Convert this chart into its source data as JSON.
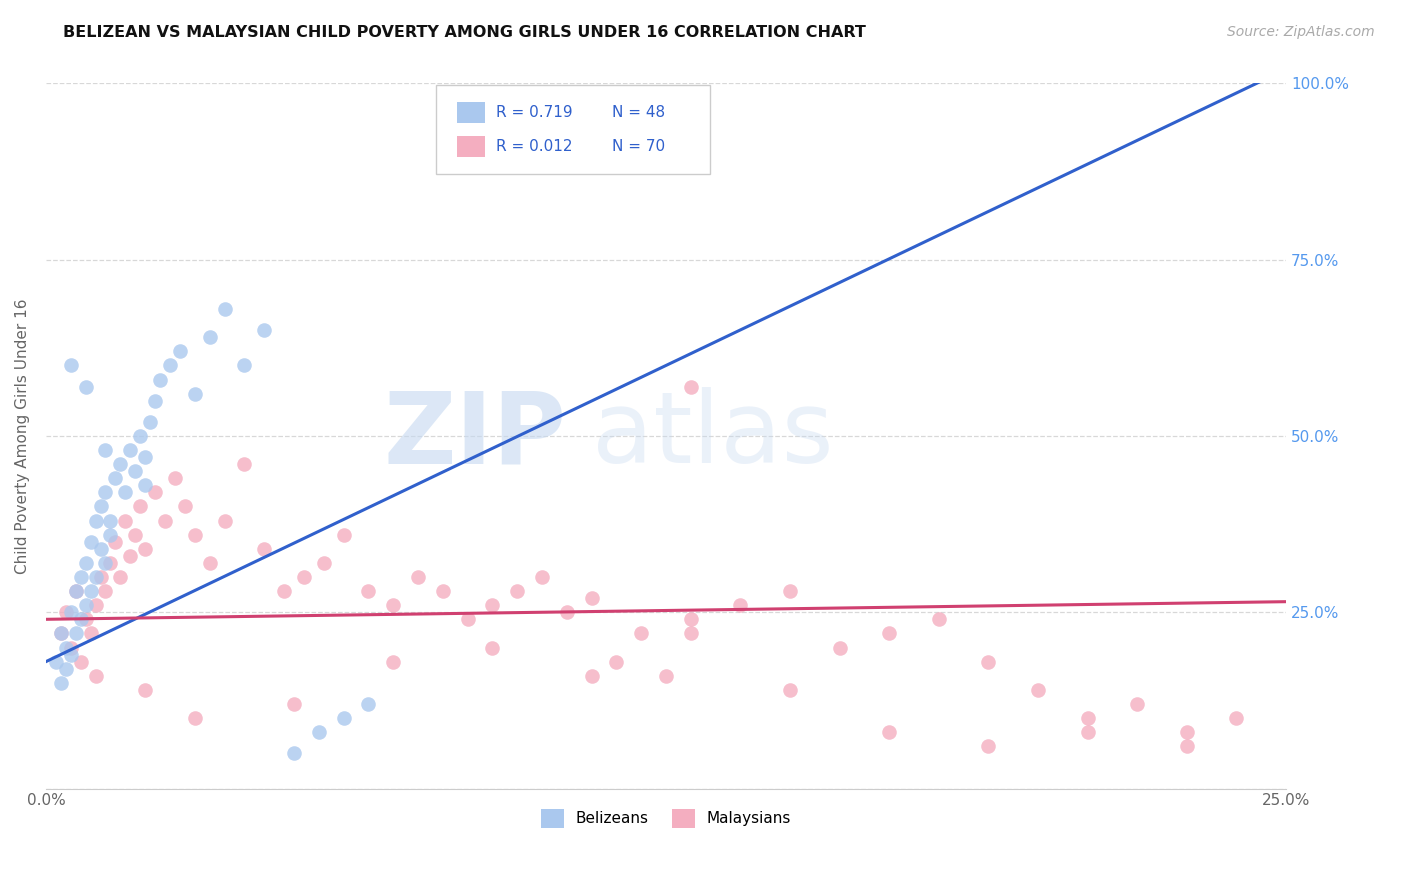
{
  "title": "BELIZEAN VS MALAYSIAN CHILD POVERTY AMONG GIRLS UNDER 16 CORRELATION CHART",
  "source": "Source: ZipAtlas.com",
  "ylabel": "Child Poverty Among Girls Under 16",
  "xlim": [
    0.0,
    0.25
  ],
  "ylim": [
    0.0,
    1.0
  ],
  "belize_color": "#aac8ee",
  "malaysia_color": "#f4aec0",
  "belize_line_color": "#3060cc",
  "malaysia_line_color": "#d04070",
  "legend_R_belize": "0.719",
  "legend_N_belize": "48",
  "legend_R_malaysia": "0.012",
  "legend_N_malaysia": "70",
  "right_tick_color": "#5599ee",
  "grid_color": "#d8d8d8",
  "belize_x": [
    0.002,
    0.003,
    0.003,
    0.004,
    0.004,
    0.005,
    0.005,
    0.006,
    0.006,
    0.007,
    0.007,
    0.008,
    0.008,
    0.009,
    0.009,
    0.01,
    0.01,
    0.011,
    0.011,
    0.012,
    0.012,
    0.013,
    0.013,
    0.014,
    0.015,
    0.016,
    0.017,
    0.018,
    0.019,
    0.02,
    0.021,
    0.022,
    0.023,
    0.025,
    0.027,
    0.03,
    0.033,
    0.036,
    0.04,
    0.044,
    0.05,
    0.055,
    0.06,
    0.065,
    0.005,
    0.008,
    0.012,
    0.02
  ],
  "belize_y": [
    0.18,
    0.22,
    0.15,
    0.2,
    0.17,
    0.25,
    0.19,
    0.28,
    0.22,
    0.24,
    0.3,
    0.26,
    0.32,
    0.28,
    0.35,
    0.3,
    0.38,
    0.34,
    0.4,
    0.32,
    0.42,
    0.36,
    0.38,
    0.44,
    0.46,
    0.42,
    0.48,
    0.45,
    0.5,
    0.47,
    0.52,
    0.55,
    0.58,
    0.6,
    0.62,
    0.56,
    0.64,
    0.68,
    0.6,
    0.65,
    0.05,
    0.08,
    0.1,
    0.12,
    0.6,
    0.57,
    0.48,
    0.43
  ],
  "malaysia_x": [
    0.003,
    0.004,
    0.005,
    0.006,
    0.007,
    0.008,
    0.009,
    0.01,
    0.011,
    0.012,
    0.013,
    0.014,
    0.015,
    0.016,
    0.017,
    0.018,
    0.019,
    0.02,
    0.022,
    0.024,
    0.026,
    0.028,
    0.03,
    0.033,
    0.036,
    0.04,
    0.044,
    0.048,
    0.052,
    0.056,
    0.06,
    0.065,
    0.07,
    0.075,
    0.08,
    0.085,
    0.09,
    0.095,
    0.1,
    0.105,
    0.11,
    0.115,
    0.12,
    0.125,
    0.13,
    0.14,
    0.15,
    0.16,
    0.17,
    0.18,
    0.19,
    0.2,
    0.21,
    0.22,
    0.23,
    0.24,
    0.01,
    0.02,
    0.03,
    0.05,
    0.07,
    0.09,
    0.11,
    0.13,
    0.15,
    0.17,
    0.19,
    0.21,
    0.23,
    0.13
  ],
  "malaysia_y": [
    0.22,
    0.25,
    0.2,
    0.28,
    0.18,
    0.24,
    0.22,
    0.26,
    0.3,
    0.28,
    0.32,
    0.35,
    0.3,
    0.38,
    0.33,
    0.36,
    0.4,
    0.34,
    0.42,
    0.38,
    0.44,
    0.4,
    0.36,
    0.32,
    0.38,
    0.46,
    0.34,
    0.28,
    0.3,
    0.32,
    0.36,
    0.28,
    0.26,
    0.3,
    0.28,
    0.24,
    0.26,
    0.28,
    0.3,
    0.25,
    0.27,
    0.18,
    0.22,
    0.16,
    0.24,
    0.26,
    0.28,
    0.2,
    0.22,
    0.24,
    0.18,
    0.14,
    0.1,
    0.12,
    0.08,
    0.1,
    0.16,
    0.14,
    0.1,
    0.12,
    0.18,
    0.2,
    0.16,
    0.22,
    0.14,
    0.08,
    0.06,
    0.08,
    0.06,
    0.57
  ],
  "belize_trend": [
    0.0,
    0.25
  ],
  "belize_trend_y": [
    0.18,
    1.02
  ],
  "malaysia_trend": [
    0.0,
    0.25
  ],
  "malaysia_trend_y": [
    0.24,
    0.265
  ]
}
